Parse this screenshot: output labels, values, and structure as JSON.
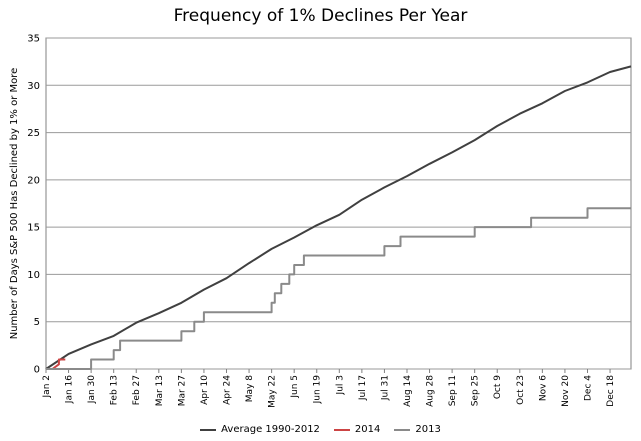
{
  "chart_data": {
    "type": "line",
    "title": "Frequency of 1% Declines Per Year",
    "xlabel": "",
    "ylabel": "Number of Days S&P 500 Has Declined by 1% or More",
    "ylim": [
      0,
      35
    ],
    "yticks": [
      0,
      5,
      10,
      15,
      20,
      25,
      30,
      35
    ],
    "xticks": [
      "Jan 2",
      "Jan 16",
      "Jan 30",
      "Feb 13",
      "Feb 27",
      "Mar 13",
      "Mar 27",
      "Apr 10",
      "Apr 24",
      "May 8",
      "May 22",
      "Jun 5",
      "Jun 19",
      "Jul 3",
      "Jul 17",
      "Jul 31",
      "Aug 14",
      "Aug 28",
      "Sep 11",
      "Sep 25",
      "Oct 9",
      "Oct 23",
      "Nov 6",
      "Nov 20",
      "Dec 4",
      "Dec 18"
    ],
    "xlim": [
      "Jan 2",
      "Dec 31"
    ],
    "grid": "horizontal",
    "legend_position": "bottom",
    "series": [
      {
        "name": "Average 1990-2012",
        "color": "#404040",
        "x": [
          "Jan 2",
          "Jan 16",
          "Jan 30",
          "Feb 13",
          "Feb 27",
          "Mar 13",
          "Mar 27",
          "Apr 10",
          "Apr 24",
          "May 8",
          "May 22",
          "Jun 5",
          "Jun 19",
          "Jul 3",
          "Jul 17",
          "Jul 31",
          "Aug 14",
          "Aug 28",
          "Sep 11",
          "Sep 25",
          "Oct 9",
          "Oct 23",
          "Nov 6",
          "Nov 20",
          "Dec 4",
          "Dec 18",
          "Dec 31"
        ],
        "values": [
          0,
          1.6,
          2.6,
          3.5,
          4.9,
          5.9,
          7.0,
          8.4,
          9.6,
          11.2,
          12.7,
          13.9,
          15.2,
          16.3,
          17.9,
          19.2,
          20.4,
          21.7,
          22.9,
          24.2,
          25.7,
          27.0,
          28.1,
          29.4,
          30.3,
          31.4,
          32.0
        ]
      },
      {
        "name": "2014",
        "color": "#cc4444",
        "x": [
          "Jan 2",
          "Jan 6",
          "Jan 10",
          "Jan 10",
          "Jan 14"
        ],
        "values": [
          0,
          0,
          0.5,
          1,
          1
        ]
      },
      {
        "name": "2013",
        "color": "#8a8a8a",
        "step": true,
        "x": [
          "Jan 2",
          "Jan 30",
          "Feb 13",
          "Feb 17",
          "Mar 27",
          "Apr 4",
          "Apr 10",
          "May 22",
          "May 24",
          "May 28",
          "Jun 2",
          "Jun 5",
          "Jun 11",
          "Jun 15",
          "Jun 21",
          "Jul 31",
          "Aug 10",
          "Aug 22",
          "Sep 25",
          "Oct 1",
          "Oct 30",
          "Nov 6",
          "Dec 4",
          "Dec 31"
        ],
        "values": [
          0,
          1,
          2,
          3,
          4,
          5,
          6,
          7,
          8,
          9,
          10,
          11,
          12,
          12,
          12,
          13,
          14,
          14,
          15,
          15,
          16,
          16,
          17,
          17
        ]
      }
    ]
  }
}
